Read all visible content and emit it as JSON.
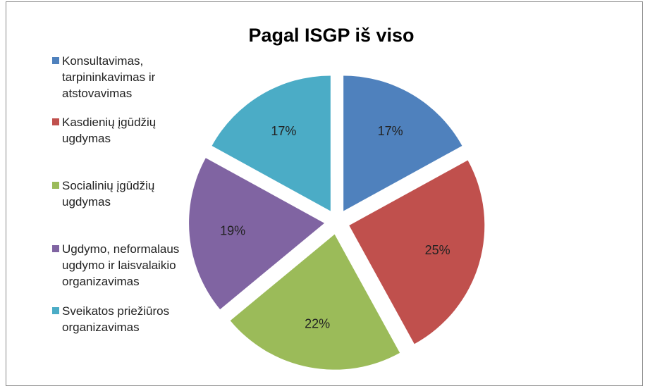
{
  "chart_data": {
    "type": "pie",
    "title": "Pagal ISGP iš viso",
    "categories": [
      "Konsultavimas, tarpininkavimas ir atstovavimas",
      "Kasdienių įgūdžių ugdymas",
      "Socialinių įgūdžių ugdymas",
      "Ugdymo, neformalaus ugdymo ir laisvalaikio organizavimas",
      "Sveikatos priežiūros organizavimas"
    ],
    "values": [
      17,
      25,
      22,
      19,
      17
    ],
    "value_labels": [
      "17%",
      "25%",
      "22%",
      "19%",
      "17%"
    ],
    "colors": [
      "#4f81bd",
      "#c0504d",
      "#9bbb59",
      "#8064a2",
      "#4bacc6"
    ],
    "legend": "left"
  }
}
